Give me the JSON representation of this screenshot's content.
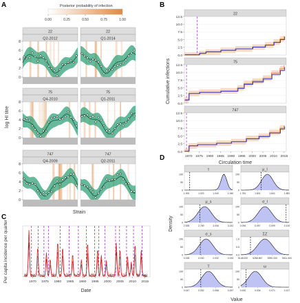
{
  "figure": {
    "panel_letters": [
      "A",
      "B",
      "C",
      "D"
    ]
  },
  "colors": {
    "green_band": "#33a37a",
    "green_line": "#1d6b4a",
    "orange": "#e08a45",
    "blue": "#1f2bd4",
    "purple": "#b24ad8",
    "red": "#d8252a",
    "density_fill": "#b4b8f2",
    "strip": "#dcdcdc",
    "grid": "#ebebeb"
  },
  "chart_data": [
    {
      "type": "line",
      "panel": "A",
      "legend": {
        "title": "Posterior probability of infection",
        "ticks": [
          "0.00",
          "0.25",
          "0.50",
          "0.75",
          "1.00"
        ],
        "range": [
          0,
          1
        ],
        "placement": "top"
      },
      "ylabel": "log HI titre",
      "xlabel": "Strain",
      "ylim": [
        0,
        8
      ],
      "yticks": [
        "0",
        "2",
        "4",
        "6",
        "8"
      ],
      "facets": [
        {
          "strain": "22",
          "period": "Q2-2012",
          "phase": 0.0
        },
        {
          "strain": "22",
          "period": "Q1-2014",
          "phase": 1.1
        },
        {
          "strain": "75",
          "period": "Q4-2010",
          "phase": 2.3
        },
        {
          "strain": "75",
          "period": "Q1-2011",
          "phase": 0.6
        },
        {
          "strain": "747",
          "period": "Q4-2009",
          "phase": 1.7
        },
        {
          "strain": "747",
          "period": "Q2-2011",
          "phase": 2.9
        }
      ]
    },
    {
      "type": "line",
      "panel": "B",
      "xlabel": "Circulation time",
      "ylabel": "Cumulative infections",
      "xlim": [
        1968,
        2016
      ],
      "ylim": [
        0,
        12.5
      ],
      "xticks": [
        "1970",
        "1975",
        "1980",
        "1985",
        "1990",
        "1995",
        "2000",
        "2005",
        "2010",
        "2015"
      ],
      "yticks": [
        "0.0",
        "2.5",
        "5.0",
        "7.5",
        "10.0",
        "12.5"
      ],
      "facets": [
        {
          "strain": "22",
          "marker_year": 1974,
          "steps": [
            [
              1968,
              0
            ],
            [
              1975,
              0.5
            ],
            [
              1978,
              1
            ],
            [
              1985,
              1.5
            ],
            [
              1992,
              2
            ],
            [
              2000,
              2.6
            ],
            [
              2006,
              3.3
            ],
            [
              2010,
              4.2
            ],
            [
              2013,
              5.2
            ],
            [
              2015,
              6.2
            ]
          ]
        },
        {
          "strain": "75",
          "marker_year": 1969,
          "steps": [
            [
              1968,
              1.0
            ],
            [
              1970,
              3.2
            ],
            [
              1975,
              3.6
            ],
            [
              1985,
              4.0
            ],
            [
              1993,
              5.0
            ],
            [
              1996,
              6.4
            ],
            [
              2000,
              7.2
            ],
            [
              2005,
              8.2
            ],
            [
              2009,
              9.8
            ],
            [
              2013,
              11.2
            ],
            [
              2015,
              12.3
            ]
          ]
        },
        {
          "strain": "747",
          "marker_year": 1969,
          "steps": [
            [
              1968,
              0
            ],
            [
              1970,
              1.8
            ],
            [
              1974,
              2.2
            ],
            [
              1983,
              2.7
            ],
            [
              1990,
              3.2
            ],
            [
              1997,
              4.2
            ],
            [
              2003,
              5.0
            ],
            [
              2008,
              6.2
            ],
            [
              2013,
              7.6
            ],
            [
              2015,
              8.5
            ]
          ]
        }
      ]
    },
    {
      "type": "line",
      "panel": "C",
      "xlabel": "Date",
      "ylabel": "Per capita incidence per quarter",
      "xlim": [
        1966,
        2017
      ],
      "xticks": [
        "1970",
        "1975",
        "1980",
        "1985",
        "1990",
        "1995",
        "2000",
        "2005",
        "2010",
        "2015"
      ],
      "dashed_years": [
        1969.5,
        1972.2,
        1974.5,
        1976.3,
        1981.0,
        1984.6,
        1988.3,
        1991.5,
        1994.8,
        1996.5,
        1998.9,
        2003.2,
        2004.8,
        2007.6,
        2010.4,
        2013.8
      ]
    },
    {
      "type": "area",
      "panel": "D",
      "xlabel": "Value",
      "ylabel": "Density",
      "panels": [
        {
          "param": "τ",
          "ticks": [
            "1.000",
            "1.023",
            "1.040",
            "1.060"
          ],
          "yticks": [
            "0",
            "50",
            "100"
          ],
          "mode": 0.82,
          "sd": 0.06,
          "dash": 0.11
        },
        {
          "param": "μ_l",
          "ticks": [
            "1.781",
            "1.801",
            "1.841",
            "1.881"
          ],
          "yticks": [
            "0",
            "50",
            "100"
          ],
          "mode": 0.55,
          "sd": 0.12,
          "dash": 0.42
        },
        {
          "param": "μ_s",
          "ticks": [
            "2.535",
            "2.769",
            "3.006",
            "3.242"
          ],
          "yticks": [
            "0",
            "50",
            "100"
          ],
          "mode": 0.42,
          "sd": 0.14,
          "dash": 0.32
        },
        {
          "param": "σ_l",
          "ticks": [
            "0.094",
            "0.097",
            "0.099",
            "0.100"
          ],
          "yticks": [
            "0",
            "50",
            "100"
          ],
          "mode": 0.5,
          "sd": 0.14,
          "dash": 0.94
        },
        {
          "param": "σ_s",
          "ticks": [
            "0.028",
            "0.030",
            "0.032",
            "0.033"
          ],
          "yticks": [
            "0",
            "50",
            "100"
          ],
          "mode": 0.45,
          "sd": 0.14,
          "dash": 0.33
        },
        {
          "param": "ΣZ",
          "ticks": [
            "5148.000",
            "5288.867",
            "5390.333",
            "5511.300"
          ],
          "yticks": [
            "0.0",
            "0.5",
            "1.0"
          ],
          "mode": 0.5,
          "sd": 0.15,
          "dash": 0.2
        },
        {
          "param": "T",
          "ticks": [
            "0.047",
            "0.052",
            "0.058",
            "0.057"
          ],
          "yticks": [
            "0",
            "50",
            "100"
          ],
          "mode": 0.5,
          "sd": 0.14,
          "dash": 0.34
        },
        {
          "param": "ω",
          "ticks": [
            "0.000",
            "0.036",
            "0.071",
            "0.107"
          ],
          "yticks": [
            "0",
            "50",
            "100"
          ],
          "mode": 0.3,
          "sd": 0.14,
          "dash": 0.11
        }
      ]
    }
  ]
}
